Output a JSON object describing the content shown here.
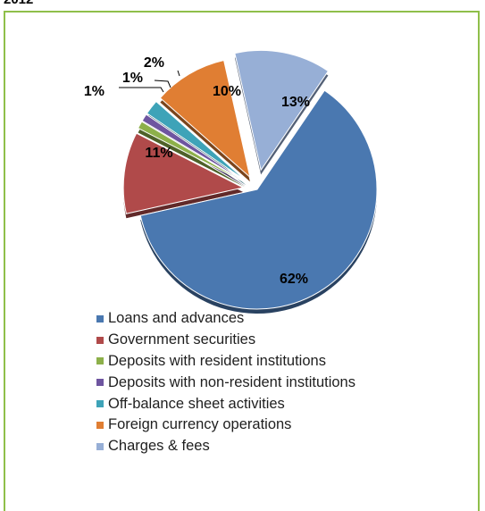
{
  "top_label": "2012",
  "chart_data": {
    "type": "pie",
    "title": "",
    "legend_placement": "bottom",
    "series": [
      {
        "name": "Loans and advances",
        "value": 62,
        "label": "62%",
        "color": "#4a78b0"
      },
      {
        "name": "Government securities",
        "value": 11,
        "label": "11%",
        "color": "#b04a4a"
      },
      {
        "name": "Deposits with resident institutions",
        "value": 1,
        "label": "1%",
        "color": "#8db04a"
      },
      {
        "name": "Deposits with non-resident institutions",
        "value": 1,
        "label": "1%",
        "color": "#6e55a0"
      },
      {
        "name": "Off-balance sheet activities",
        "value": 2,
        "label": "2%",
        "color": "#3ea3b8"
      },
      {
        "name": "Foreign currency operations",
        "value": 10,
        "label": "10%",
        "color": "#e07e33"
      },
      {
        "name": "Charges & fees",
        "value": 13,
        "label": "13%",
        "color": "#97afd6"
      }
    ]
  }
}
